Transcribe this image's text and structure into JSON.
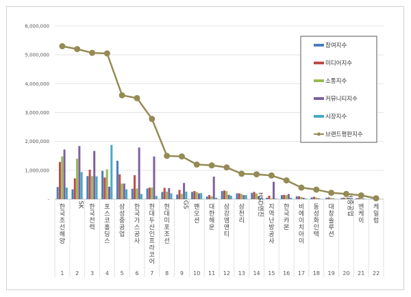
{
  "chart_data": {
    "type": "bar",
    "title": "",
    "xlabel": "",
    "ylabel": "",
    "ylim": [
      0,
      6000000
    ],
    "yticks": [
      "-",
      "1,000,000",
      "2,000,000",
      "3,000,000",
      "4,000,000",
      "5,000,000",
      "6,000,000"
    ],
    "grid": true,
    "legend_position": "top-right",
    "categories": [
      "한국조선해양",
      "SK",
      "한국전력",
      "포스코홀딩스",
      "삼성중공업",
      "한국가스공사",
      "현대두산인프라코어",
      "현대미포조선",
      "GS",
      "팬오션",
      "대한해운",
      "삼강엠앤티",
      "삼천리",
      "HSD엔진",
      "지역난방공사",
      "한국카본",
      "비에이치아이",
      "동성화인텍",
      "대창솔루션",
      "HJ중공업",
      "엔케이",
      "케일럼"
    ],
    "ranks": [
      "1",
      "2",
      "3",
      "4",
      "5",
      "6",
      "7",
      "8",
      "9",
      "10",
      "11",
      "12",
      "13",
      "14",
      "15",
      "16",
      "17",
      "18",
      "19",
      "20",
      "21",
      "22"
    ],
    "series": [
      {
        "name": "참여지수",
        "kind": "bar",
        "color": "#4a7ebb",
        "values": [
          420000,
          340000,
          800000,
          980000,
          1330000,
          360000,
          370000,
          250000,
          160000,
          250000,
          90000,
          280000,
          200000,
          220000,
          50000,
          140000,
          100000,
          60000,
          50000,
          40000,
          30000,
          10000
        ]
      },
      {
        "name": "미디어지수",
        "kind": "bar",
        "color": "#be4b48",
        "values": [
          1290000,
          720000,
          1020000,
          750000,
          860000,
          830000,
          400000,
          390000,
          320000,
          280000,
          140000,
          300000,
          200000,
          250000,
          120000,
          150000,
          100000,
          80000,
          60000,
          50000,
          40000,
          15000
        ]
      },
      {
        "name": "소통지수",
        "kind": "bar",
        "color": "#98b954",
        "values": [
          1480000,
          1400000,
          800000,
          1030000,
          540000,
          370000,
          400000,
          260000,
          180000,
          250000,
          100000,
          280000,
          180000,
          200000,
          30000,
          140000,
          80000,
          60000,
          40000,
          40000,
          30000,
          10000
        ]
      },
      {
        "name": "커뮤니티지수",
        "kind": "bar",
        "color": "#7d60a0",
        "values": [
          1720000,
          1840000,
          1670000,
          430000,
          540000,
          1790000,
          1480000,
          380000,
          560000,
          200000,
          780000,
          150000,
          140000,
          100000,
          600000,
          180000,
          50000,
          30000,
          20000,
          20000,
          20000,
          5000
        ]
      },
      {
        "name": "시장지수",
        "kind": "bar",
        "color": "#46aac5",
        "values": [
          400000,
          940000,
          790000,
          1880000,
          340000,
          180000,
          110000,
          200000,
          260000,
          210000,
          50000,
          120000,
          140000,
          50000,
          20000,
          50000,
          20000,
          10000,
          10000,
          5000,
          5000,
          2000
        ]
      },
      {
        "name": "브랜드평판지수",
        "kind": "line",
        "color": "#948a54",
        "values": [
          5300000,
          5200000,
          5070000,
          5050000,
          3600000,
          3500000,
          2780000,
          1500000,
          1480000,
          1200000,
          1170000,
          1100000,
          880000,
          860000,
          820000,
          650000,
          400000,
          330000,
          220000,
          180000,
          130000,
          30000
        ]
      }
    ]
  }
}
